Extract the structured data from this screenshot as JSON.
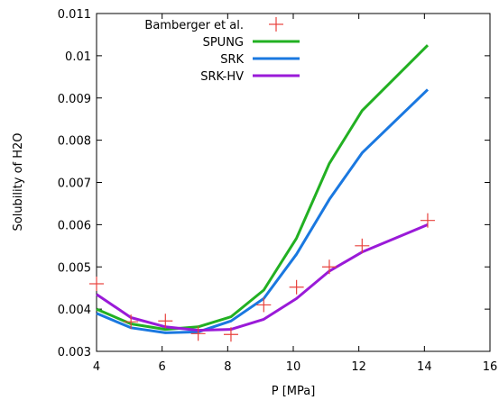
{
  "chart_data": {
    "type": "line",
    "xlabel": "P [MPa]",
    "ylabel": "Solubility of H2O",
    "xlim": [
      4,
      16
    ],
    "ylim": [
      0.003,
      0.011
    ],
    "grid": false,
    "legend_position": "top-right",
    "x_ticks": [
      "4",
      "6",
      "8",
      "10",
      "12",
      "14",
      "16"
    ],
    "y_ticks": [
      "0.003",
      "0.004",
      "0.005",
      "0.006",
      "0.007",
      "0.008",
      "0.009",
      "0.01",
      "0.011"
    ],
    "series": [
      {
        "name": "Bamberger et al.",
        "style": "markers",
        "marker": "plus",
        "color": "#e8413c",
        "x": [
          4.0,
          5.05,
          6.1,
          7.1,
          8.1,
          9.1,
          10.1,
          11.1,
          12.1,
          14.1
        ],
        "y": [
          0.0046,
          0.0037,
          0.00372,
          0.00342,
          0.0034,
          0.0041,
          0.00452,
          0.005,
          0.0055,
          0.0061
        ]
      },
      {
        "name": "SPUNG",
        "style": "line",
        "color": "#22b022",
        "x": [
          4.0,
          5.05,
          6.1,
          7.1,
          8.1,
          9.1,
          10.1,
          11.1,
          12.1,
          14.1
        ],
        "y": [
          0.004,
          0.00365,
          0.00352,
          0.00358,
          0.00382,
          0.00445,
          0.00568,
          0.00745,
          0.0087,
          0.01025
        ]
      },
      {
        "name": "SRK",
        "style": "line",
        "color": "#1a78e0",
        "x": [
          4.0,
          5.05,
          6.1,
          7.1,
          8.1,
          9.1,
          10.1,
          11.1,
          12.1,
          14.1
        ],
        "y": [
          0.0039,
          0.00356,
          0.00344,
          0.00346,
          0.00372,
          0.00425,
          0.0053,
          0.0066,
          0.0077,
          0.0092
        ]
      },
      {
        "name": "SRK-HV",
        "style": "line",
        "color": "#9a1ad8",
        "x": [
          4.0,
          5.05,
          6.1,
          7.1,
          8.1,
          9.1,
          10.1,
          11.1,
          12.1,
          14.1
        ],
        "y": [
          0.00435,
          0.0038,
          0.00358,
          0.0035,
          0.00352,
          0.00376,
          0.00425,
          0.0049,
          0.00535,
          0.006
        ]
      }
    ]
  }
}
